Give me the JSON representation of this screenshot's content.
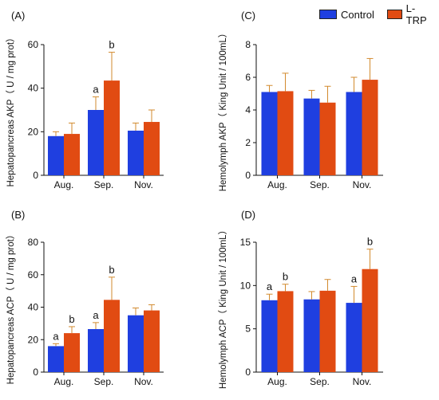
{
  "legend": {
    "series": [
      "Control",
      "L-TRP"
    ]
  },
  "colors": {
    "control": "#1f3fe0",
    "ltrp": "#e14b12",
    "error_bar": "#d28a2e",
    "axis": "#111111"
  },
  "chart_data": [
    {
      "panel": "(A)",
      "type": "bar",
      "categories": [
        "Aug.",
        "Sep.",
        "Nov."
      ],
      "ylabel": "Hepatopancreas AKP（ U / mg prot）",
      "ylim": [
        0,
        60
      ],
      "yticks": [
        0,
        20,
        40,
        60
      ],
      "series": [
        {
          "name": "Control",
          "values": [
            18,
            30,
            20.5
          ],
          "errors": [
            2,
            6,
            3.5
          ]
        },
        {
          "name": "L-TRP",
          "values": [
            19,
            43.5,
            24.5
          ],
          "errors": [
            5,
            13,
            5.5
          ]
        }
      ],
      "annotations": [
        [
          "",
          ""
        ],
        [
          "a",
          "b"
        ],
        [
          "",
          ""
        ]
      ]
    },
    {
      "panel": "(C)",
      "type": "bar",
      "categories": [
        "Aug.",
        "Sep.",
        "Nov."
      ],
      "ylabel": "Hemolymph AKP（ King Unit / 100mL）",
      "ylim": [
        0,
        8
      ],
      "yticks": [
        0,
        2,
        4,
        6,
        8
      ],
      "series": [
        {
          "name": "Control",
          "values": [
            5.1,
            4.7,
            5.1
          ],
          "errors": [
            0.4,
            0.5,
            0.9
          ]
        },
        {
          "name": "L-TRP",
          "values": [
            5.15,
            4.45,
            5.85
          ],
          "errors": [
            1.1,
            1.0,
            1.3
          ]
        }
      ],
      "annotations": [
        [
          "",
          ""
        ],
        [
          "",
          ""
        ],
        [
          "",
          ""
        ]
      ]
    },
    {
      "panel": "(B)",
      "type": "bar",
      "categories": [
        "Aug.",
        "Sep.",
        "Nov."
      ],
      "ylabel": "Hepatopancreas ACP（ U / mg prot）",
      "ylim": [
        0,
        80
      ],
      "yticks": [
        0,
        20,
        40,
        60,
        80
      ],
      "series": [
        {
          "name": "Control",
          "values": [
            16,
            26.5,
            35
          ],
          "errors": [
            1.5,
            4,
            4.5
          ]
        },
        {
          "name": "L-TRP",
          "values": [
            24,
            44.5,
            38
          ],
          "errors": [
            4,
            14,
            3.5
          ]
        }
      ],
      "annotations": [
        [
          "a",
          "b"
        ],
        [
          "a",
          "b"
        ],
        [
          "",
          ""
        ]
      ]
    },
    {
      "panel": "(D)",
      "type": "bar",
      "categories": [
        "Aug.",
        "Sep.",
        "Nov."
      ],
      "ylabel": "Hemolymph ACP（ King Unit / 100mL）",
      "ylim": [
        0,
        15
      ],
      "yticks": [
        0,
        5,
        10,
        15
      ],
      "series": [
        {
          "name": "Control",
          "values": [
            8.3,
            8.4,
            8.0
          ],
          "errors": [
            0.7,
            0.9,
            1.9
          ]
        },
        {
          "name": "L-TRP",
          "values": [
            9.35,
            9.4,
            11.9
          ],
          "errors": [
            0.8,
            1.3,
            2.3
          ]
        }
      ],
      "annotations": [
        [
          "a",
          "b"
        ],
        [
          "",
          ""
        ],
        [
          "a",
          "b"
        ]
      ]
    }
  ]
}
